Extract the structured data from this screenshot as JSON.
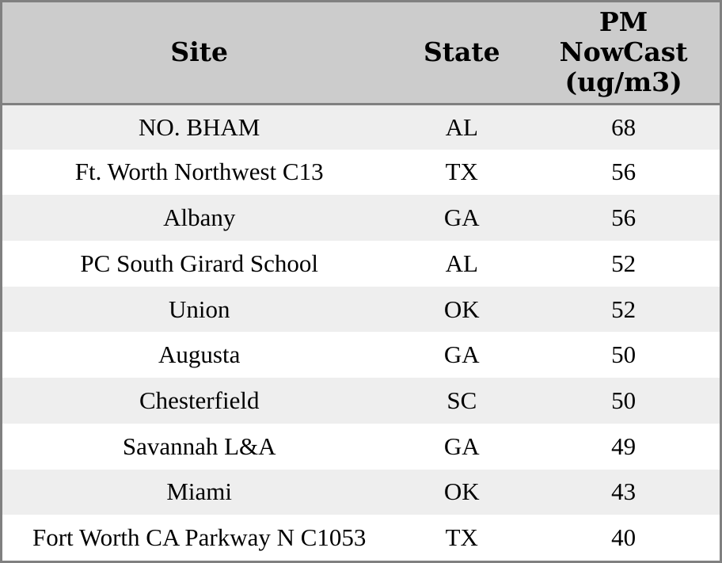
{
  "chart_data": {
    "type": "table",
    "columns": [
      "Site",
      "State",
      "PM NowCast (ug/m3)"
    ],
    "rows": [
      [
        "NO. BHAM",
        "AL",
        "68"
      ],
      [
        "Ft. Worth Northwest C13",
        "TX",
        "56"
      ],
      [
        "Albany",
        "GA",
        "56"
      ],
      [
        "PC South Girard School",
        "AL",
        "52"
      ],
      [
        "Union",
        "OK",
        "52"
      ],
      [
        "Augusta",
        "GA",
        "50"
      ],
      [
        "Chesterfield",
        "SC",
        "50"
      ],
      [
        "Savannah L&A",
        "GA",
        "49"
      ],
      [
        "Miami",
        "OK",
        "43"
      ],
      [
        "Fort Worth CA Parkway N C1053",
        "TX",
        "40"
      ]
    ],
    "title": "",
    "legend": null,
    "grid": "horizontal-stripes-only"
  },
  "colors": {
    "header_bg": "#cccccc",
    "row_alt_bg": "#eeeeee",
    "row_bg": "#ffffff",
    "border": "#808080",
    "text": "#000000"
  }
}
